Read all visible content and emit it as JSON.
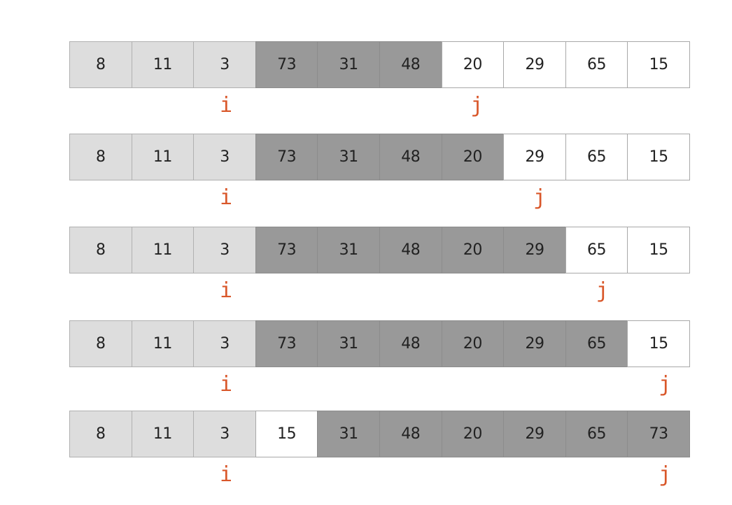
{
  "colors": {
    "sorted": "#dddddd",
    "greater": "#999999",
    "unseen": "#ffffff",
    "pointer": "#d9572a"
  },
  "pointer_labels": {
    "i": "i",
    "j": "j"
  },
  "steps": [
    {
      "values": [
        8,
        11,
        3,
        73,
        31,
        48,
        20,
        29,
        65,
        15
      ],
      "states": [
        "sorted",
        "sorted",
        "sorted",
        "greater",
        "greater",
        "greater",
        "unseen",
        "unseen",
        "unseen",
        "unseen"
      ],
      "i_index": 2,
      "j_index": 6
    },
    {
      "values": [
        8,
        11,
        3,
        73,
        31,
        48,
        20,
        29,
        65,
        15
      ],
      "states": [
        "sorted",
        "sorted",
        "sorted",
        "greater",
        "greater",
        "greater",
        "greater",
        "unseen",
        "unseen",
        "unseen"
      ],
      "i_index": 2,
      "j_index": 7
    },
    {
      "values": [
        8,
        11,
        3,
        73,
        31,
        48,
        20,
        29,
        65,
        15
      ],
      "states": [
        "sorted",
        "sorted",
        "sorted",
        "greater",
        "greater",
        "greater",
        "greater",
        "greater",
        "unseen",
        "unseen"
      ],
      "i_index": 2,
      "j_index": 8
    },
    {
      "values": [
        8,
        11,
        3,
        73,
        31,
        48,
        20,
        29,
        65,
        15
      ],
      "states": [
        "sorted",
        "sorted",
        "sorted",
        "greater",
        "greater",
        "greater",
        "greater",
        "greater",
        "greater",
        "unseen"
      ],
      "i_index": 2,
      "j_index": 9
    },
    {
      "values": [
        8,
        11,
        3,
        15,
        31,
        48,
        20,
        29,
        65,
        73
      ],
      "states": [
        "sorted",
        "sorted",
        "sorted",
        "unseen",
        "greater",
        "greater",
        "greater",
        "greater",
        "greater",
        "greater"
      ],
      "i_index": 2,
      "j_index": 9
    }
  ]
}
